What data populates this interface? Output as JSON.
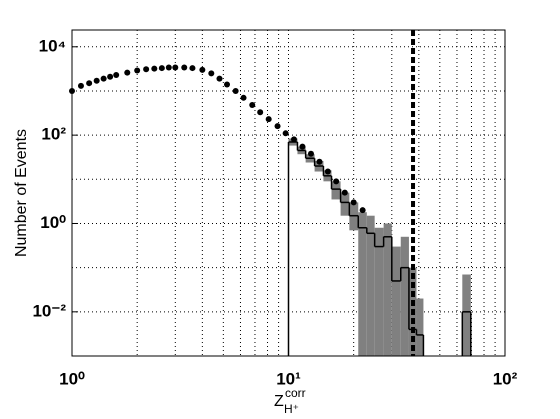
{
  "chart_data": {
    "type": "scatter",
    "ylabel": "Number of Events",
    "xlabel": "Z",
    "xlabel_sup": "corr",
    "xlabel_sub": "H⁺",
    "log_x": true,
    "log_y": true,
    "grid": true,
    "xlim": [
      1,
      100
    ],
    "ylim": [
      0.001,
      24000
    ],
    "xticks": [
      {
        "value": 1,
        "label": "10⁰"
      },
      {
        "value": 10,
        "label": "10¹"
      },
      {
        "value": 100,
        "label": "10²"
      }
    ],
    "yticks": [
      {
        "value": 0.01,
        "label": "10⁻²"
      },
      {
        "value": 1,
        "label": "10⁰"
      },
      {
        "value": 100,
        "label": "10²"
      },
      {
        "value": 10000,
        "label": "10⁴"
      }
    ],
    "series": [
      {
        "color": "#000000",
        "x": [
          1.0,
          1.1,
          1.2,
          1.3,
          1.4,
          1.5,
          1.6,
          1.8,
          2.0,
          2.2,
          2.4,
          2.6,
          2.8,
          3.0,
          3.3,
          3.6,
          4.0,
          4.4,
          4.8,
          5.2,
          5.7,
          6.2,
          6.8,
          7.4,
          8.1,
          8.9,
          9.7,
          10.6,
          11.6,
          12.7,
          13.9,
          15.2,
          16.6,
          18.2,
          20,
          22
        ],
        "values": [
          1000,
          1300,
          1500,
          1700,
          1900,
          2100,
          2300,
          2600,
          2900,
          3100,
          3200,
          3300,
          3400,
          3400,
          3400,
          3300,
          3000,
          2500,
          1900,
          1400,
          1000,
          700,
          480,
          330,
          230,
          160,
          110,
          80,
          55,
          38,
          25,
          15,
          9,
          5,
          3,
          2
        ]
      }
    ],
    "mc": {
      "color": "#000000",
      "band_color": "#808080",
      "bins_left": [
        10.0,
        11.0,
        12.0,
        13.2,
        14.5,
        15.8,
        17.4,
        19.1,
        21.0,
        23.0,
        25.0,
        27.5,
        30.0,
        33.0,
        36.0,
        39.0,
        63.5
      ],
      "bins_right": [
        11.0,
        12.0,
        13.2,
        14.5,
        15.8,
        17.4,
        19.1,
        21.0,
        23.0,
        25.0,
        27.5,
        30.0,
        33.0,
        36.0,
        39.0,
        42.0,
        69.5
      ],
      "values": [
        70,
        45,
        30,
        20,
        12,
        6,
        3,
        1.5,
        0.8,
        0.6,
        0.3,
        0.5,
        0.05,
        0.1,
        0.004,
        0.003,
        0.01
      ],
      "band_low": [
        58,
        37,
        24,
        15,
        9,
        3.5,
        1.5,
        0.7,
        0.001,
        0.001,
        0.001,
        0.001,
        0.001,
        0.001,
        0.001,
        0.001,
        0.001
      ],
      "band_high": [
        84,
        55,
        37,
        26,
        16,
        9,
        5,
        3,
        1.8,
        1.5,
        0.8,
        1,
        0.3,
        0.5,
        0.1,
        0.02,
        0.07
      ]
    },
    "cut_line": {
      "x": 37.6,
      "color": "#000000"
    }
  }
}
